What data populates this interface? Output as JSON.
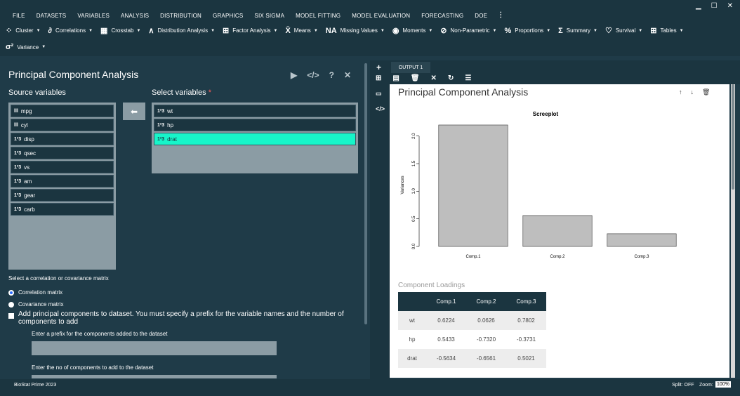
{
  "menu": {
    "items": [
      "FILE",
      "DATASETS",
      "VARIABLES",
      "ANALYSIS",
      "DISTRIBUTION",
      "GRAPHICS",
      "SIX SIGMA",
      "MODEL FITTING",
      "MODEL EVALUATION",
      "FORECASTING",
      "DOE"
    ],
    "active": "ANALYSIS"
  },
  "toolbar": {
    "row1": [
      {
        "label": "Cluster",
        "icon": "cluster-icon",
        "glyph": "⁘"
      },
      {
        "label": "Correlations",
        "icon": "correlations-icon",
        "glyph": "∂"
      },
      {
        "label": "Crosstab",
        "icon": "crosstab-icon",
        "glyph": "▦"
      },
      {
        "label": "Distribution Analysis",
        "icon": "distribution-icon",
        "glyph": "∧"
      },
      {
        "label": "Factor Analysis",
        "icon": "factor-icon",
        "glyph": "⊞"
      },
      {
        "label": "Means",
        "icon": "means-icon",
        "glyph": "X̄"
      },
      {
        "label": "Missing Values",
        "icon": "missing-icon",
        "glyph": "NA"
      },
      {
        "label": "Moments",
        "icon": "moments-icon",
        "glyph": "◉"
      },
      {
        "label": "Non-Parametric",
        "icon": "nonparametric-icon",
        "glyph": "⊘"
      },
      {
        "label": "Proportions",
        "icon": "proportions-icon",
        "glyph": "%"
      },
      {
        "label": "Summary",
        "icon": "summary-icon",
        "glyph": "Σ"
      },
      {
        "label": "Survival",
        "icon": "survival-icon",
        "glyph": "♡"
      },
      {
        "label": "Tables",
        "icon": "tables-icon",
        "glyph": "⊞"
      }
    ],
    "row2": [
      {
        "label": "Variance",
        "icon": "variance-icon",
        "glyph": "σ²"
      }
    ]
  },
  "left": {
    "title": "Principal Component Analysis",
    "source_label": "Source variables",
    "select_label": "Select variables",
    "required_mark": "*",
    "source_vars": [
      {
        "name": "mpg",
        "type": "factor"
      },
      {
        "name": "cyl",
        "type": "factor"
      },
      {
        "name": "disp",
        "type": "numeric"
      },
      {
        "name": "qsec",
        "type": "numeric"
      },
      {
        "name": "vs",
        "type": "numeric"
      },
      {
        "name": "am",
        "type": "numeric"
      },
      {
        "name": "gear",
        "type": "numeric"
      },
      {
        "name": "carb",
        "type": "numeric"
      }
    ],
    "selected_vars": [
      {
        "name": "wt",
        "type": "numeric",
        "highlighted": false
      },
      {
        "name": "hp",
        "type": "numeric",
        "highlighted": false
      },
      {
        "name": "drat",
        "type": "numeric",
        "highlighted": true
      }
    ],
    "matrix_question": "Select a correlation or covariance matrix",
    "radio_correlation": "Correlation matrix",
    "radio_covariance": "Covariance matrix",
    "selected_matrix": "correlation",
    "add_components_label": "Add principal components to dataset. You must specify a prefix for the variable names and the number of components to add",
    "prefix_label": "Enter a prefix for the components added to the dataset",
    "prefix_value": "",
    "ncomp_label": "Enter the no of components to add to the dataset",
    "ncomp_value": ""
  },
  "output": {
    "tab_label": "OUTPUT 1",
    "title": "Principal Component Analysis",
    "loadings_title": "Component Loadings",
    "loadings": {
      "columns": [
        "",
        "Comp.1",
        "Comp.2",
        "Comp.3"
      ],
      "rows": [
        [
          "wt",
          "0.6224",
          "0.0626",
          "0.7802"
        ],
        [
          "hp",
          "0.5433",
          "-0.7320",
          "-0.3731"
        ],
        [
          "drat",
          "-0.5634",
          "-0.6561",
          "0.5021"
        ]
      ]
    }
  },
  "chart_data": {
    "type": "bar",
    "title": "Screeplot",
    "xlabel": "",
    "ylabel": "Variances",
    "categories": [
      "Comp.1",
      "Comp.2",
      "Comp.3"
    ],
    "values": [
      2.2,
      0.56,
      0.23
    ],
    "ylim": [
      0,
      2.2
    ],
    "yticks": [
      0.0,
      0.5,
      1.0,
      1.5,
      2.0
    ],
    "ytick_labels": [
      "0.0",
      "0.5",
      "1.0",
      "1.5",
      "2.0"
    ],
    "bar_color": "#bebebe",
    "grid": false
  },
  "status": {
    "app_name": "BioStat Prime 2023",
    "split": "Split: OFF",
    "zoom_label": "Zoom:",
    "zoom_value": "100%"
  }
}
